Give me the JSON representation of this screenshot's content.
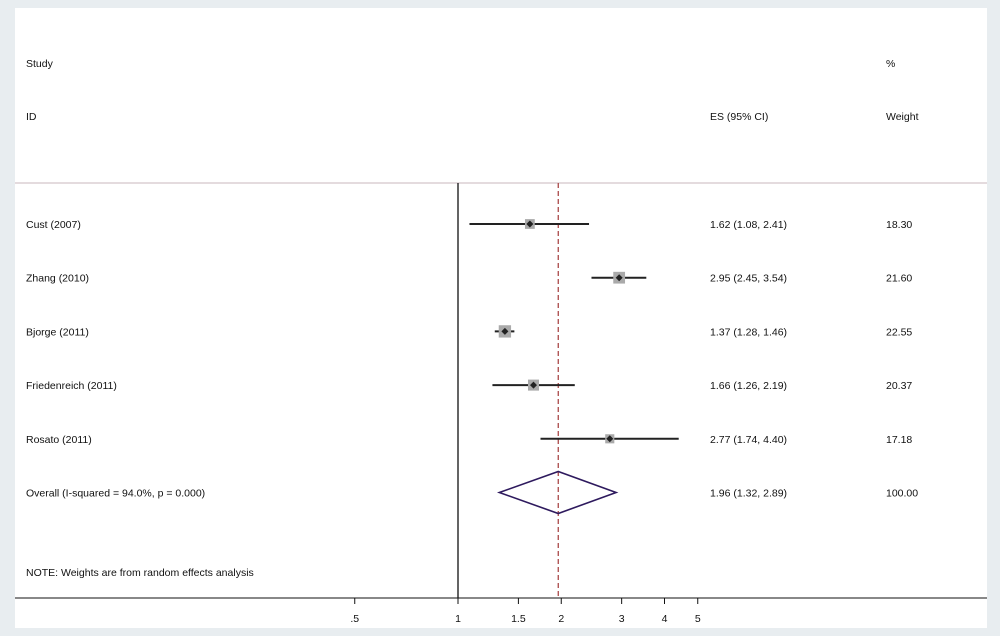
{
  "header": {
    "study_label": "Study",
    "id_label": "ID",
    "es_label": "ES (95% CI)",
    "pct_label": "%",
    "weight_label": "Weight"
  },
  "note": "NOTE: Weights are from random effects analysis",
  "colors": {
    "point": "#222222",
    "weight_box": "#aaaaaa",
    "diamond": "#2e1a5e",
    "overall_line": "#a33a3a",
    "separator": "#c9b7bd",
    "axis": "#111111"
  },
  "chart_data": {
    "type": "forest",
    "x_scale": "log",
    "xlim": [
      0.5,
      5
    ],
    "ticks": [
      {
        "value": 0.5,
        "label": ".5"
      },
      {
        "value": 1,
        "label": "1"
      },
      {
        "value": 1.5,
        "label": "1.5"
      },
      {
        "value": 2,
        "label": "2"
      },
      {
        "value": 3,
        "label": "3"
      },
      {
        "value": 4,
        "label": "4"
      },
      {
        "value": 5,
        "label": "5"
      }
    ],
    "null_line": 1,
    "studies": [
      {
        "id": "Cust (2007)",
        "es": 1.62,
        "lo": 1.08,
        "hi": 2.41,
        "es_text": "1.62 (1.08, 2.41)",
        "weight": 18.3,
        "weight_text": "18.30"
      },
      {
        "id": "Zhang (2010)",
        "es": 2.95,
        "lo": 2.45,
        "hi": 3.54,
        "es_text": "2.95 (2.45, 3.54)",
        "weight": 21.6,
        "weight_text": "21.60"
      },
      {
        "id": "Bjorge (2011)",
        "es": 1.37,
        "lo": 1.28,
        "hi": 1.46,
        "es_text": "1.37 (1.28, 1.46)",
        "weight": 22.55,
        "weight_text": "22.55"
      },
      {
        "id": "Friedenreich (2011)",
        "es": 1.66,
        "lo": 1.26,
        "hi": 2.19,
        "es_text": "1.66 (1.26, 2.19)",
        "weight": 20.37,
        "weight_text": "20.37"
      },
      {
        "id": "Rosato (2011)",
        "es": 2.77,
        "lo": 1.74,
        "hi": 4.4,
        "es_text": "2.77 (1.74, 4.40)",
        "weight": 17.18,
        "weight_text": "17.18"
      }
    ],
    "overall": {
      "id": "Overall  (I-squared = 94.0%, p = 0.000)",
      "es": 1.96,
      "lo": 1.32,
      "hi": 2.89,
      "es_text": "1.96 (1.32, 2.89)",
      "weight_text": "100.00"
    }
  }
}
